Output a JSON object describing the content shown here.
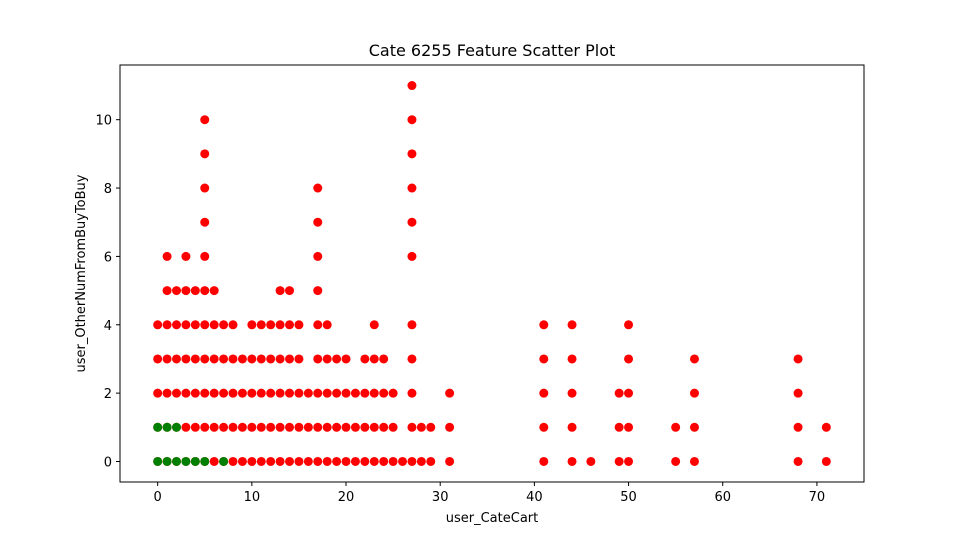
{
  "chart_data": {
    "type": "scatter",
    "title": "Cate 6255 Feature Scatter Plot",
    "xlabel": "user_CateCart",
    "ylabel": "user_OtherNumFromBuyToBuy",
    "xlim": [
      -4,
      75
    ],
    "ylim": [
      -0.6,
      11.6
    ],
    "xticks": [
      0,
      10,
      20,
      30,
      40,
      50,
      60,
      70
    ],
    "yticks": [
      0,
      2,
      4,
      6,
      8,
      10
    ],
    "xtick_labels": [
      "0",
      "10",
      "20",
      "30",
      "40",
      "50",
      "60",
      "70"
    ],
    "ytick_labels": [
      "0",
      "2",
      "4",
      "6",
      "8",
      "10"
    ],
    "grid": false,
    "legend": "none",
    "series": [
      {
        "color": "#ff0000",
        "points": [
          [
            0,
            0
          ],
          [
            1,
            0
          ],
          [
            2,
            0
          ],
          [
            3,
            0
          ],
          [
            4,
            0
          ],
          [
            5,
            0
          ],
          [
            6,
            0
          ],
          [
            7,
            0
          ],
          [
            8,
            0
          ],
          [
            9,
            0
          ],
          [
            10,
            0
          ],
          [
            11,
            0
          ],
          [
            12,
            0
          ],
          [
            13,
            0
          ],
          [
            14,
            0
          ],
          [
            15,
            0
          ],
          [
            16,
            0
          ],
          [
            17,
            0
          ],
          [
            18,
            0
          ],
          [
            19,
            0
          ],
          [
            20,
            0
          ],
          [
            21,
            0
          ],
          [
            22,
            0
          ],
          [
            23,
            0
          ],
          [
            24,
            0
          ],
          [
            25,
            0
          ],
          [
            26,
            0
          ],
          [
            27,
            0
          ],
          [
            28,
            0
          ],
          [
            29,
            0
          ],
          [
            31,
            0
          ],
          [
            41,
            0
          ],
          [
            44,
            0
          ],
          [
            46,
            0
          ],
          [
            49,
            0
          ],
          [
            50,
            0
          ],
          [
            55,
            0
          ],
          [
            57,
            0
          ],
          [
            68,
            0
          ],
          [
            71,
            0
          ],
          [
            0,
            1
          ],
          [
            1,
            1
          ],
          [
            2,
            1
          ],
          [
            3,
            1
          ],
          [
            4,
            1
          ],
          [
            5,
            1
          ],
          [
            6,
            1
          ],
          [
            7,
            1
          ],
          [
            8,
            1
          ],
          [
            9,
            1
          ],
          [
            10,
            1
          ],
          [
            11,
            1
          ],
          [
            12,
            1
          ],
          [
            13,
            1
          ],
          [
            14,
            1
          ],
          [
            15,
            1
          ],
          [
            16,
            1
          ],
          [
            17,
            1
          ],
          [
            18,
            1
          ],
          [
            19,
            1
          ],
          [
            20,
            1
          ],
          [
            21,
            1
          ],
          [
            22,
            1
          ],
          [
            23,
            1
          ],
          [
            24,
            1
          ],
          [
            25,
            1
          ],
          [
            27,
            1
          ],
          [
            28,
            1
          ],
          [
            29,
            1
          ],
          [
            31,
            1
          ],
          [
            41,
            1
          ],
          [
            44,
            1
          ],
          [
            49,
            1
          ],
          [
            50,
            1
          ],
          [
            55,
            1
          ],
          [
            57,
            1
          ],
          [
            68,
            1
          ],
          [
            71,
            1
          ],
          [
            0,
            2
          ],
          [
            1,
            2
          ],
          [
            2,
            2
          ],
          [
            3,
            2
          ],
          [
            4,
            2
          ],
          [
            5,
            2
          ],
          [
            6,
            2
          ],
          [
            7,
            2
          ],
          [
            8,
            2
          ],
          [
            9,
            2
          ],
          [
            10,
            2
          ],
          [
            11,
            2
          ],
          [
            12,
            2
          ],
          [
            13,
            2
          ],
          [
            14,
            2
          ],
          [
            15,
            2
          ],
          [
            16,
            2
          ],
          [
            17,
            2
          ],
          [
            18,
            2
          ],
          [
            19,
            2
          ],
          [
            20,
            2
          ],
          [
            21,
            2
          ],
          [
            22,
            2
          ],
          [
            23,
            2
          ],
          [
            24,
            2
          ],
          [
            25,
            2
          ],
          [
            27,
            2
          ],
          [
            31,
            2
          ],
          [
            41,
            2
          ],
          [
            44,
            2
          ],
          [
            49,
            2
          ],
          [
            50,
            2
          ],
          [
            57,
            2
          ],
          [
            68,
            2
          ],
          [
            0,
            3
          ],
          [
            1,
            3
          ],
          [
            2,
            3
          ],
          [
            3,
            3
          ],
          [
            4,
            3
          ],
          [
            5,
            3
          ],
          [
            6,
            3
          ],
          [
            7,
            3
          ],
          [
            8,
            3
          ],
          [
            9,
            3
          ],
          [
            10,
            3
          ],
          [
            11,
            3
          ],
          [
            12,
            3
          ],
          [
            13,
            3
          ],
          [
            14,
            3
          ],
          [
            15,
            3
          ],
          [
            17,
            3
          ],
          [
            18,
            3
          ],
          [
            19,
            3
          ],
          [
            20,
            3
          ],
          [
            22,
            3
          ],
          [
            23,
            3
          ],
          [
            24,
            3
          ],
          [
            27,
            3
          ],
          [
            41,
            3
          ],
          [
            44,
            3
          ],
          [
            50,
            3
          ],
          [
            57,
            3
          ],
          [
            68,
            3
          ],
          [
            0,
            4
          ],
          [
            1,
            4
          ],
          [
            2,
            4
          ],
          [
            3,
            4
          ],
          [
            4,
            4
          ],
          [
            5,
            4
          ],
          [
            6,
            4
          ],
          [
            7,
            4
          ],
          [
            8,
            4
          ],
          [
            10,
            4
          ],
          [
            11,
            4
          ],
          [
            12,
            4
          ],
          [
            13,
            4
          ],
          [
            14,
            4
          ],
          [
            15,
            4
          ],
          [
            17,
            4
          ],
          [
            18,
            4
          ],
          [
            23,
            4
          ],
          [
            27,
            4
          ],
          [
            41,
            4
          ],
          [
            44,
            4
          ],
          [
            50,
            4
          ],
          [
            1,
            5
          ],
          [
            2,
            5
          ],
          [
            3,
            5
          ],
          [
            4,
            5
          ],
          [
            5,
            5
          ],
          [
            6,
            5
          ],
          [
            13,
            5
          ],
          [
            14,
            5
          ],
          [
            17,
            5
          ],
          [
            1,
            6
          ],
          [
            3,
            6
          ],
          [
            5,
            6
          ],
          [
            17,
            6
          ],
          [
            27,
            6
          ],
          [
            5,
            7
          ],
          [
            17,
            7
          ],
          [
            27,
            7
          ],
          [
            5,
            8
          ],
          [
            17,
            8
          ],
          [
            27,
            8
          ],
          [
            5,
            9
          ],
          [
            27,
            9
          ],
          [
            5,
            10
          ],
          [
            27,
            10
          ],
          [
            27,
            11
          ]
        ]
      },
      {
        "color": "#008000",
        "points": [
          [
            0,
            0
          ],
          [
            1,
            0
          ],
          [
            2,
            0
          ],
          [
            3,
            0
          ],
          [
            4,
            0
          ],
          [
            5,
            0
          ],
          [
            7,
            0
          ],
          [
            0,
            1
          ],
          [
            1,
            1
          ],
          [
            2,
            1
          ]
        ]
      }
    ]
  }
}
